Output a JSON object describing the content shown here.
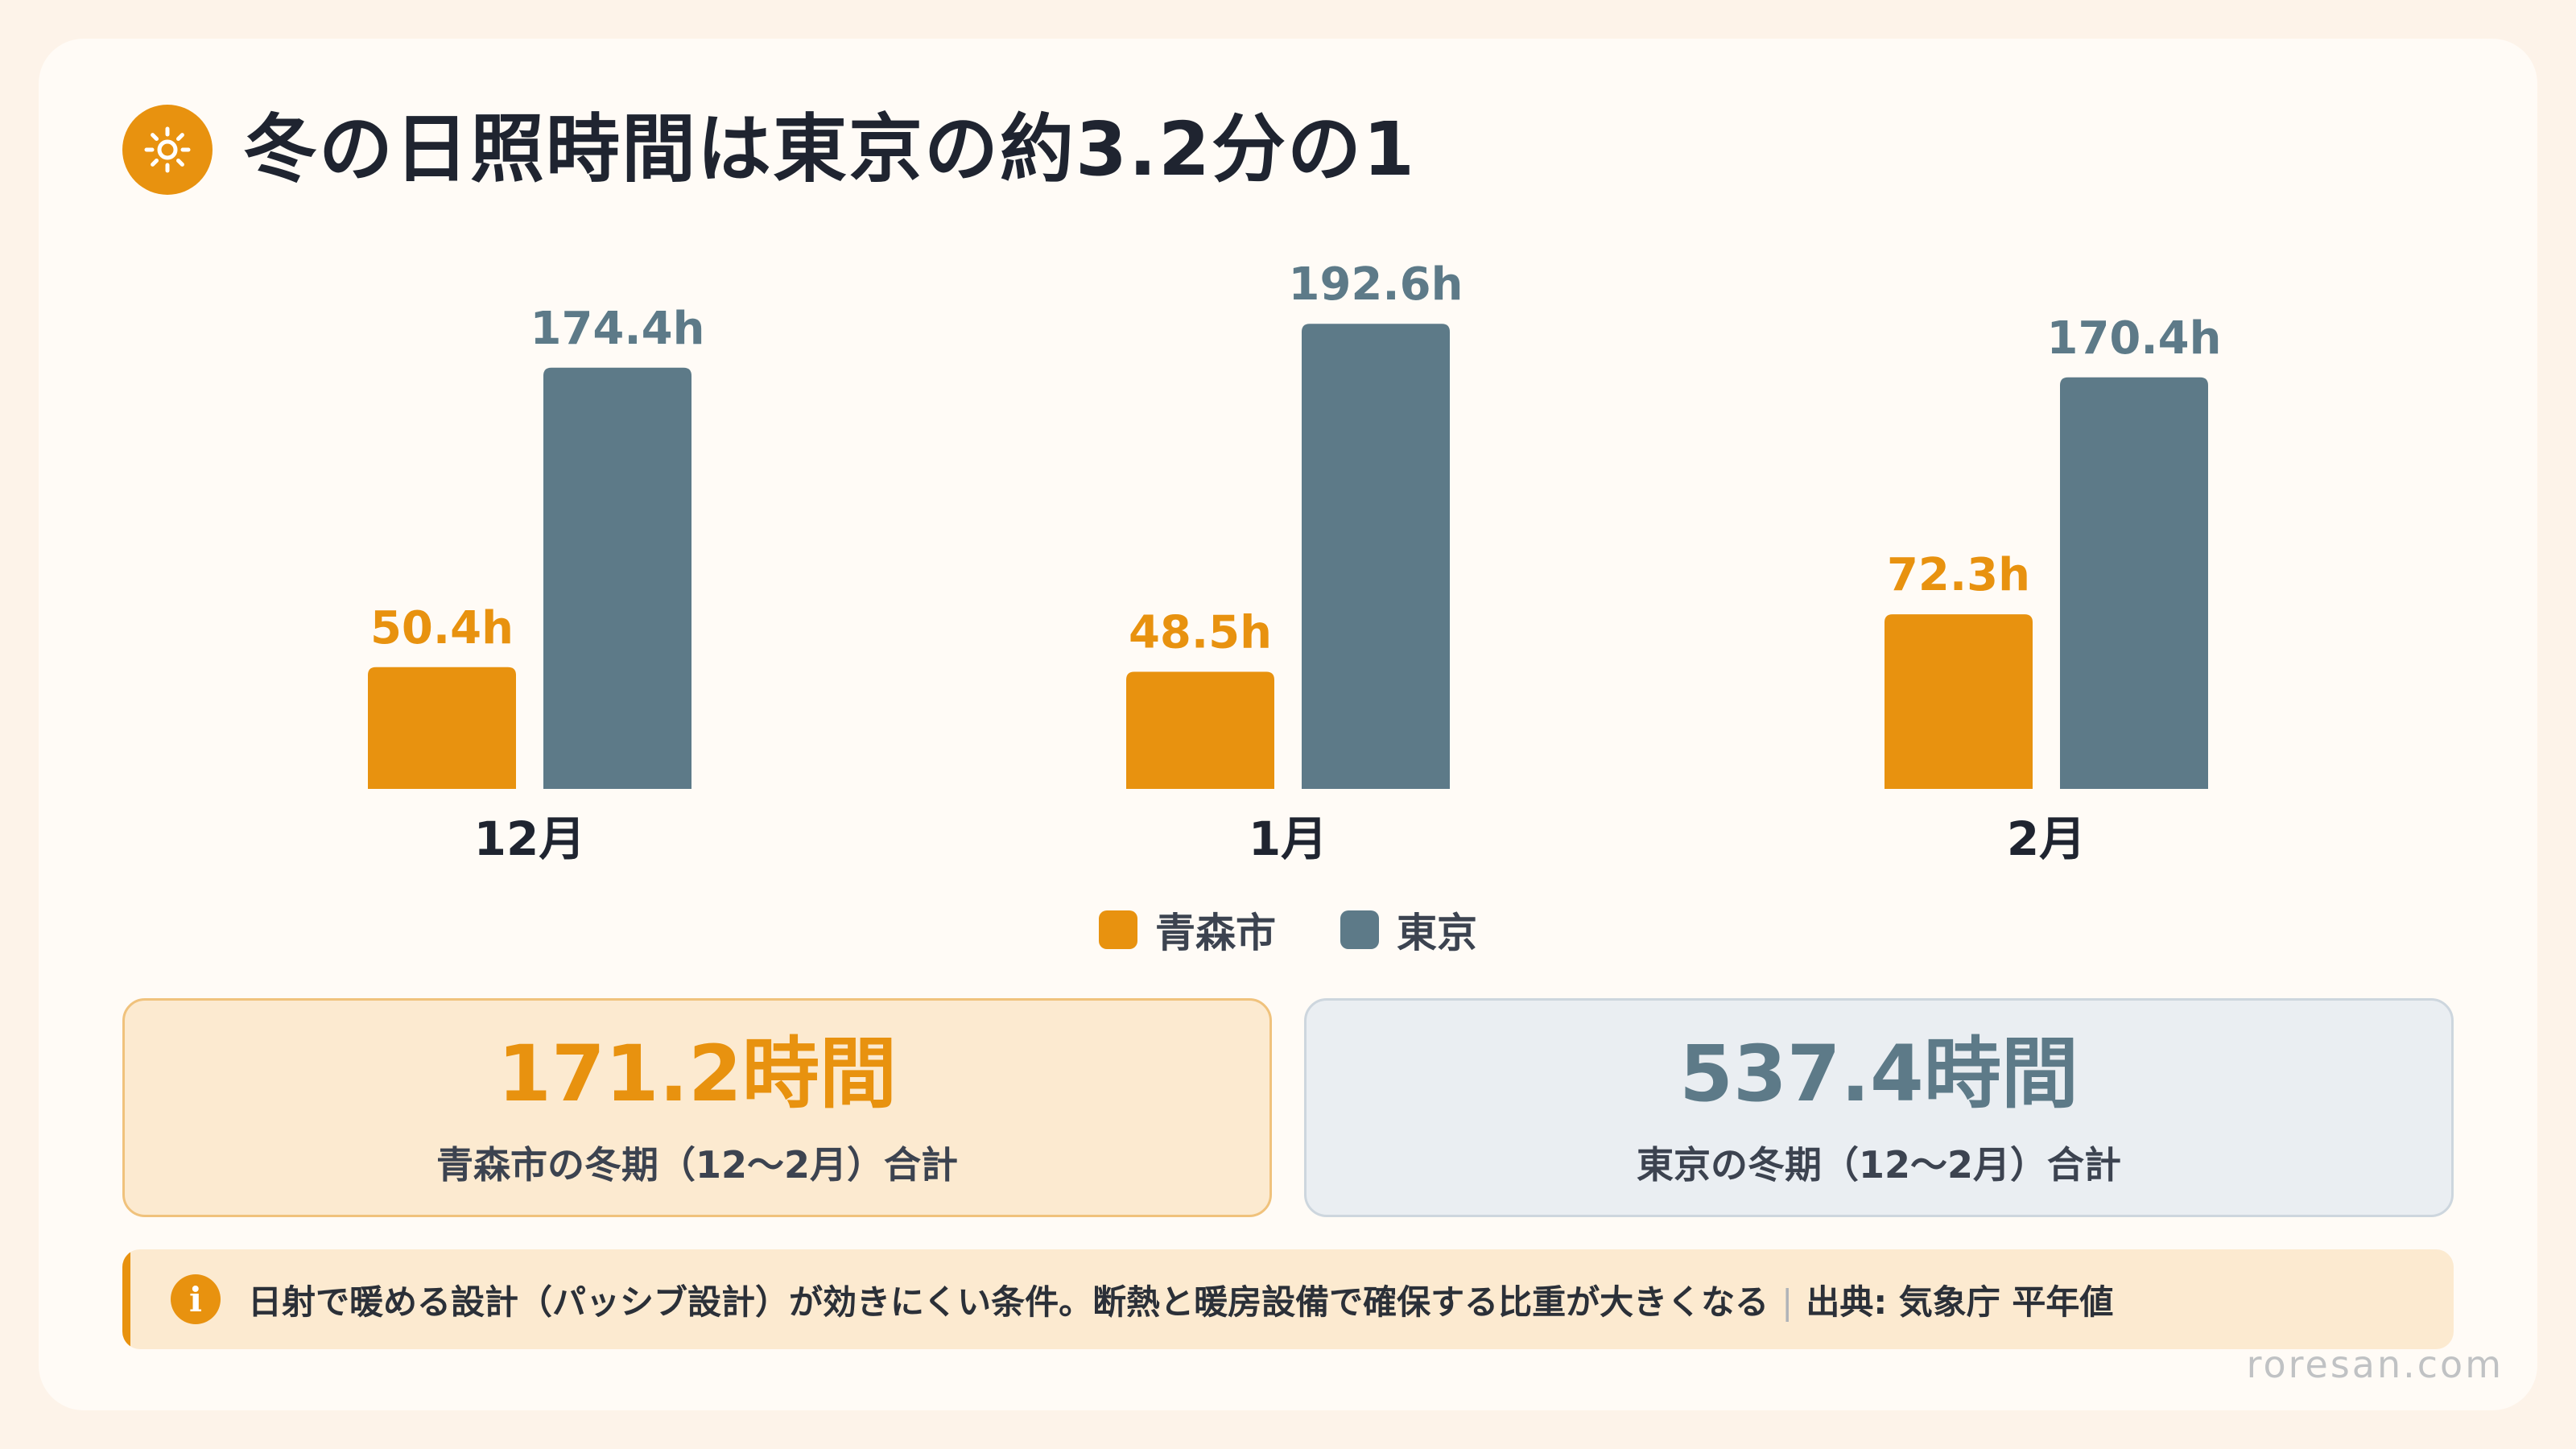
{
  "header": {
    "icon": "sun-icon",
    "title": "冬の日照時間は東京の約3.2分の1"
  },
  "colors": {
    "aomori": "#e8920f",
    "tokyo": "#5d7a88"
  },
  "chart_data": {
    "type": "bar",
    "categories": [
      "12月",
      "1月",
      "2月"
    ],
    "series": [
      {
        "name": "青森市",
        "values": [
          50.4,
          48.5,
          72.3
        ],
        "labels": [
          "50.4h",
          "48.5h",
          "72.3h"
        ]
      },
      {
        "name": "東京",
        "values": [
          174.4,
          192.6,
          170.4
        ],
        "labels": [
          "174.4h",
          "192.6h",
          "170.4h"
        ]
      }
    ],
    "unit": "h",
    "grid": false,
    "legend_position": "bottom"
  },
  "legend": {
    "aomori": "青森市",
    "tokyo": "東京"
  },
  "summary": {
    "aomori": {
      "value": "171.2時間",
      "label": "青森市の冬期（12〜2月）合計"
    },
    "tokyo": {
      "value": "537.4時間",
      "label": "東京の冬期（12〜2月）合計"
    }
  },
  "note": {
    "icon_letter": "i",
    "text": "日射で暖める設計（パッシブ設計）が効きにくい条件。断熱と暖房設備で確保する比重が大きくなる",
    "separator": "|",
    "source": "出典: 気象庁 平年値"
  },
  "watermark": "roresan.com"
}
